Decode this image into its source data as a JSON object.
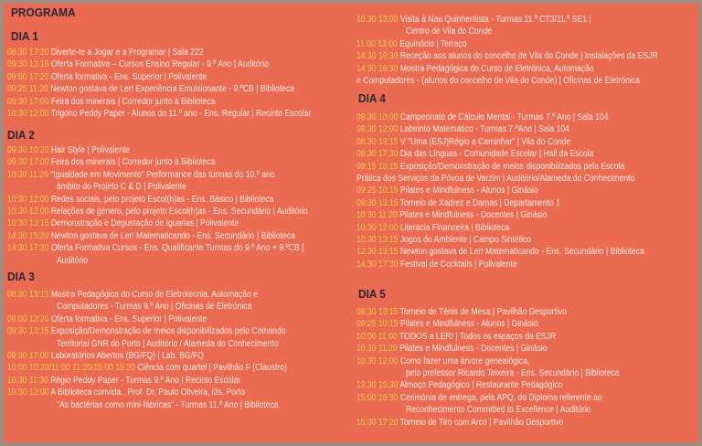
{
  "title": "PROGRAMA",
  "colors": {
    "background": "#ea6b52",
    "time": "#f7c84a",
    "text": "#fbeae0",
    "heading": "#2a2838",
    "frame": "#a38b80"
  },
  "days": [
    {
      "title": "DIA 1",
      "items": [
        {
          "time": "08:30 17:20",
          "text": "Diverte-te a Jogar e a Programar | Sala 222"
        },
        {
          "time": "09:30 13:15",
          "text": "Oferta Formativa – Cursos Ensino Regular - 9.º Ano | Auditório"
        },
        {
          "time": "09:00 17:20",
          "text": "Oferta formativa - Ens. Superior | Polivalente"
        },
        {
          "time": "09:25 11:20",
          "text": "Newton gostava de Ler! Experiência Emulsionante - 9.ºCB | Biblioteca"
        },
        {
          "time": "09:30 17:00",
          "text": "Feira dos minerais | Corredor junto à Biblioteca"
        },
        {
          "time": "10:30 12:00",
          "text": "Trigono Peddy Paper - Alunos do 11.º ano - Ens. Regular | Recinto Escolar"
        }
      ]
    },
    {
      "title": "DIA 2",
      "items": [
        {
          "time": "09:30 10:20",
          "text": "Hair Style | Polivalente"
        },
        {
          "time": "09:30 17:00",
          "text": "Feira dos minerais | Corredor junto à Biblioteca"
        },
        {
          "time": "10:30 11:20",
          "text": "\"Igualdade em Movimento\" Performance das turmas do 10.º ano",
          "cont": "âmbito do Projeto C & D | Polivalente"
        },
        {
          "time": "10:30 12:00",
          "text": "Redes sociais, pelo projeto Escol(h)as - Ens. Básico | Biblioteca"
        },
        {
          "time": "10:30 12:00",
          "text": "Relações de género, pelo projeto Escol(h)as - Ens. Secundário | Auditório"
        },
        {
          "time": "10:30 13:15",
          "text": "Demonstração e Degustação de Iguarias | Polivalente"
        },
        {
          "time": "14:30 15:20",
          "text": "Newton gostava de Ler! Matematicando - Ens. Secundário | Biblioteca"
        },
        {
          "time": "14:30 17:30",
          "text": "Oferta Formativa Cursos - Ens. Qualificante Turmas do 9.º Ano + 9.ºCB |",
          "cont": "Auditório"
        }
      ]
    },
    {
      "title": "DIA 3",
      "items": [
        {
          "time": "08:30 13:15",
          "text": "Mostra Pedagógica do Curso de Eletrotecnia, Automação e",
          "cont": "Computadores - Turmas 9.º Ano | Oficinas de Eletrónica"
        },
        {
          "time": "09:00 12:20",
          "text": "Oferta formativa - Ens. Superior | Polivalente"
        },
        {
          "time": "09:30 13:15",
          "text": "Exposição/Demonstração de meios disponibilizados pelo Comando",
          "cont": "Territorial GNR do Porto | Auditório / Alameda do Conhecimento"
        },
        {
          "time": "09:30 17:00",
          "text": "Laboratórios Abertos (BG/FQ) | Lab. BG/FQ"
        },
        {
          "time": "10:00 10:20/11:00 11:20/15:00 15:20",
          "text": "Ciência com quartel | Pavilhão F (Claustro)"
        },
        {
          "time": "10:30 11:30",
          "text": "Régio Peddy Paper - Turmas 9.º Ano | Recinto Escolar"
        },
        {
          "time": "10:30 12:00",
          "text": "A Biblioteca convida...Prof. Dr. Paulo Oliveira, i3s, Porto",
          "cont": "\"As bactérias como mini-fábricas\" - Turmas 11.º Ano | Biblioteca"
        },
        {
          "time": "10:30 13:00",
          "text": "Visita à Nau Quinhentista - Turmas 11.º CT3/11.º SE1 |",
          "cont": "Centro de Vila do Conde"
        },
        {
          "time": "11:00 13:00",
          "text": "Equinócio | Terraço"
        },
        {
          "time": "14:30 16:30",
          "text": "Receção aos alunos do concelho de Vila do Conde | Instalações da ESJR"
        },
        {
          "time": "14:30 16:30",
          "text": "Mostra Pedagógica do Curso de Eletrónica, Automação",
          "cont": "e Computadores - (alunos do concelho de Vila do Conde) | Oficinas de Eletrónica"
        }
      ]
    },
    {
      "title": "DIA 4",
      "items": [
        {
          "time": "08:30 10:00",
          "text": "Campeonato de Cálculo Mental - Turmas 7.º Ano | Sala 104"
        },
        {
          "time": "08:30 12:00",
          "text": "Labirinto Matemático - Turmas 7.ºAno | Sala 104"
        },
        {
          "time": "08:30 13:15",
          "text": "V \"Uma (ESJ)Régio a Caminhar\" | Vila do Conde"
        },
        {
          "time": "08:30 17:30",
          "text": "Dia das Línguas  - Comunidade Escolar | Hall da Escola"
        },
        {
          "time": "09:15 18:15",
          "text": "Exposição/Demonstração de meios disponibilizados pela Escola",
          "cont": "Prática dos Serviços da Póvoa de Varzim | Auditório/Alameda do Conhecimento"
        },
        {
          "time": "09:25 10:15",
          "text": "Pilates e Mindfulness - Alunos | Ginásio"
        },
        {
          "time": "09:30 13:15",
          "text": "Torneio de Xadrez e Damas | Departamento 1"
        },
        {
          "time": "10:30 11:20",
          "text": "Pilates e Mindfulness - Docentes | Ginásio"
        },
        {
          "time": "10:30 12:00",
          "text": "Literacia Financeira | Biblioteca"
        },
        {
          "time": "10:30 13:15",
          "text": "Jogos do Ambiente | Campo Sintético"
        },
        {
          "time": "12:30 13:15",
          "text": "Newton gostava de Ler! Matematicando - Ens. Secundário | Biblioteca"
        },
        {
          "time": "14:30 17:30",
          "text": "Festival de Cocktails | Polivalente"
        }
      ]
    },
    {
      "title": "DIA 5",
      "items": [
        {
          "time": "08:30 13:15",
          "text": "Torneio de Ténis de Mesa | Pavilhão Desportivo"
        },
        {
          "time": "09:25 10:15",
          "text": "Pilates e Mindfulness - Alunos | Ginásio"
        },
        {
          "time": "10:00 11:00",
          "text": "TODOS a LER! | Todos os espaços da ESJR"
        },
        {
          "time": "10:30 11:20",
          "text": "Pilates e Mindfulness - Docentes | Ginásio"
        },
        {
          "time": "10:30 12:00",
          "text": "Como fazer uma árvore genealógica,",
          "cont": "pelo professor Ricardo Teixeira - Ens. Secundário | Biblioteca"
        },
        {
          "time": "13:30 15:30",
          "text": "Almoço Pedagógico | Restaurante Pedagógico"
        },
        {
          "time": "15:00 16:30",
          "text": "Cerimónia de entrega, pela APQ, do Diploma referente ao",
          "cont": "Reconhecimento Committed to Excellence | Auditório"
        },
        {
          "time": "15:30 17:20",
          "text": "Torneio de Tiro com Arco | Pavilhão Desportivo"
        }
      ]
    }
  ]
}
